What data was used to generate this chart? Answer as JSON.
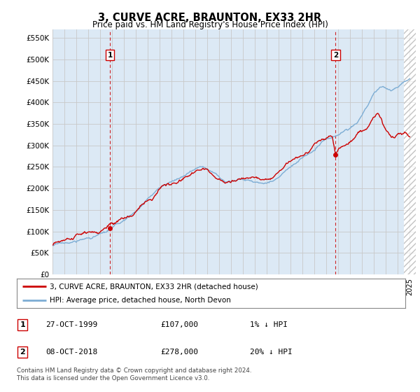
{
  "title": "3, CURVE ACRE, BRAUNTON, EX33 2HR",
  "subtitle": "Price paid vs. HM Land Registry's House Price Index (HPI)",
  "title_fontsize": 10.5,
  "subtitle_fontsize": 8.5,
  "ylabel_ticks": [
    "£0",
    "£50K",
    "£100K",
    "£150K",
    "£200K",
    "£250K",
    "£300K",
    "£350K",
    "£400K",
    "£450K",
    "£500K",
    "£550K"
  ],
  "ytick_values": [
    0,
    50000,
    100000,
    150000,
    200000,
    250000,
    300000,
    350000,
    400000,
    450000,
    500000,
    550000
  ],
  "ylim": [
    0,
    570000
  ],
  "xlim_start": 1995.0,
  "xlim_end": 2025.5,
  "sale1_x": 1999.82,
  "sale1_y": 107000,
  "sale2_x": 2018.77,
  "sale2_y": 278000,
  "dot_color": "#cc0000",
  "vline_color": "#cc0000",
  "hpi_line_color": "#7dadd4",
  "price_line_color": "#cc0000",
  "grid_color": "#c8c8c8",
  "bg_color": "#ffffff",
  "plot_bg_color": "#dce9f5",
  "hatch_start": 2024.5,
  "legend_label1": "3, CURVE ACRE, BRAUNTON, EX33 2HR (detached house)",
  "legend_label2": "HPI: Average price, detached house, North Devon",
  "table_row1_num": "1",
  "table_row1_date": "27-OCT-1999",
  "table_row1_price": "£107,000",
  "table_row1_hpi": "1% ↓ HPI",
  "table_row2_num": "2",
  "table_row2_date": "08-OCT-2018",
  "table_row2_price": "£278,000",
  "table_row2_hpi": "20% ↓ HPI",
  "footer": "Contains HM Land Registry data © Crown copyright and database right 2024.\nThis data is licensed under the Open Government Licence v3.0."
}
